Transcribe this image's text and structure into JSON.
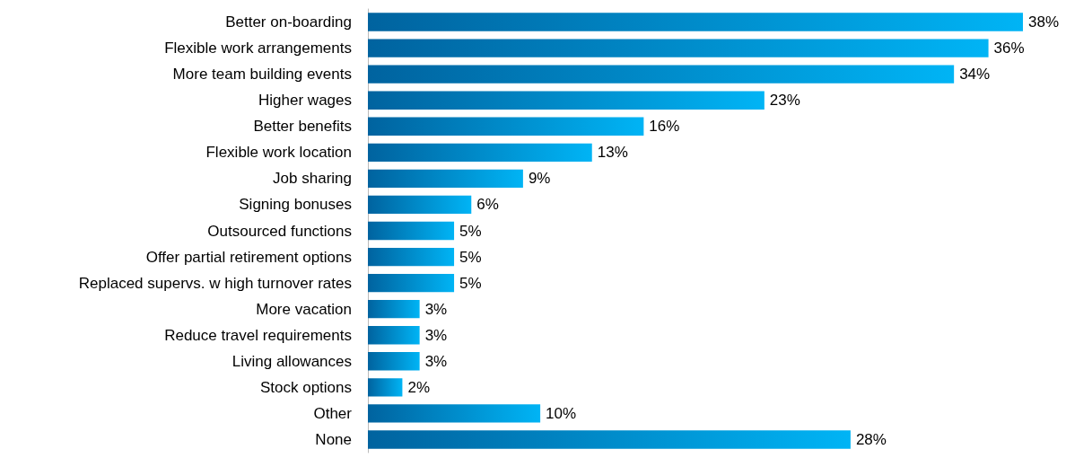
{
  "chart_data": {
    "type": "bar",
    "orientation": "horizontal",
    "categories": [
      "Better on-boarding",
      "Flexible work arrangements",
      "More team building events",
      "Higher wages",
      "Better benefits",
      "Flexible work location",
      "Job sharing",
      "Signing bonuses",
      "Outsourced functions",
      "Offer partial retirement options",
      "Replaced supervs. w high turnover rates",
      "More vacation",
      "Reduce travel requirements",
      "Living allowances",
      "Stock options",
      "Other",
      "None"
    ],
    "values": [
      38,
      36,
      34,
      23,
      16,
      13,
      9,
      6,
      5,
      5,
      5,
      3,
      3,
      3,
      2,
      10,
      28
    ],
    "value_labels": [
      "38%",
      "36%",
      "34%",
      "23%",
      "16%",
      "13%",
      "9%",
      "6%",
      "5%",
      "5%",
      "5%",
      "3%",
      "3%",
      "3%",
      "2%",
      "10%",
      "28%"
    ],
    "color": "#00b4f5"
  }
}
